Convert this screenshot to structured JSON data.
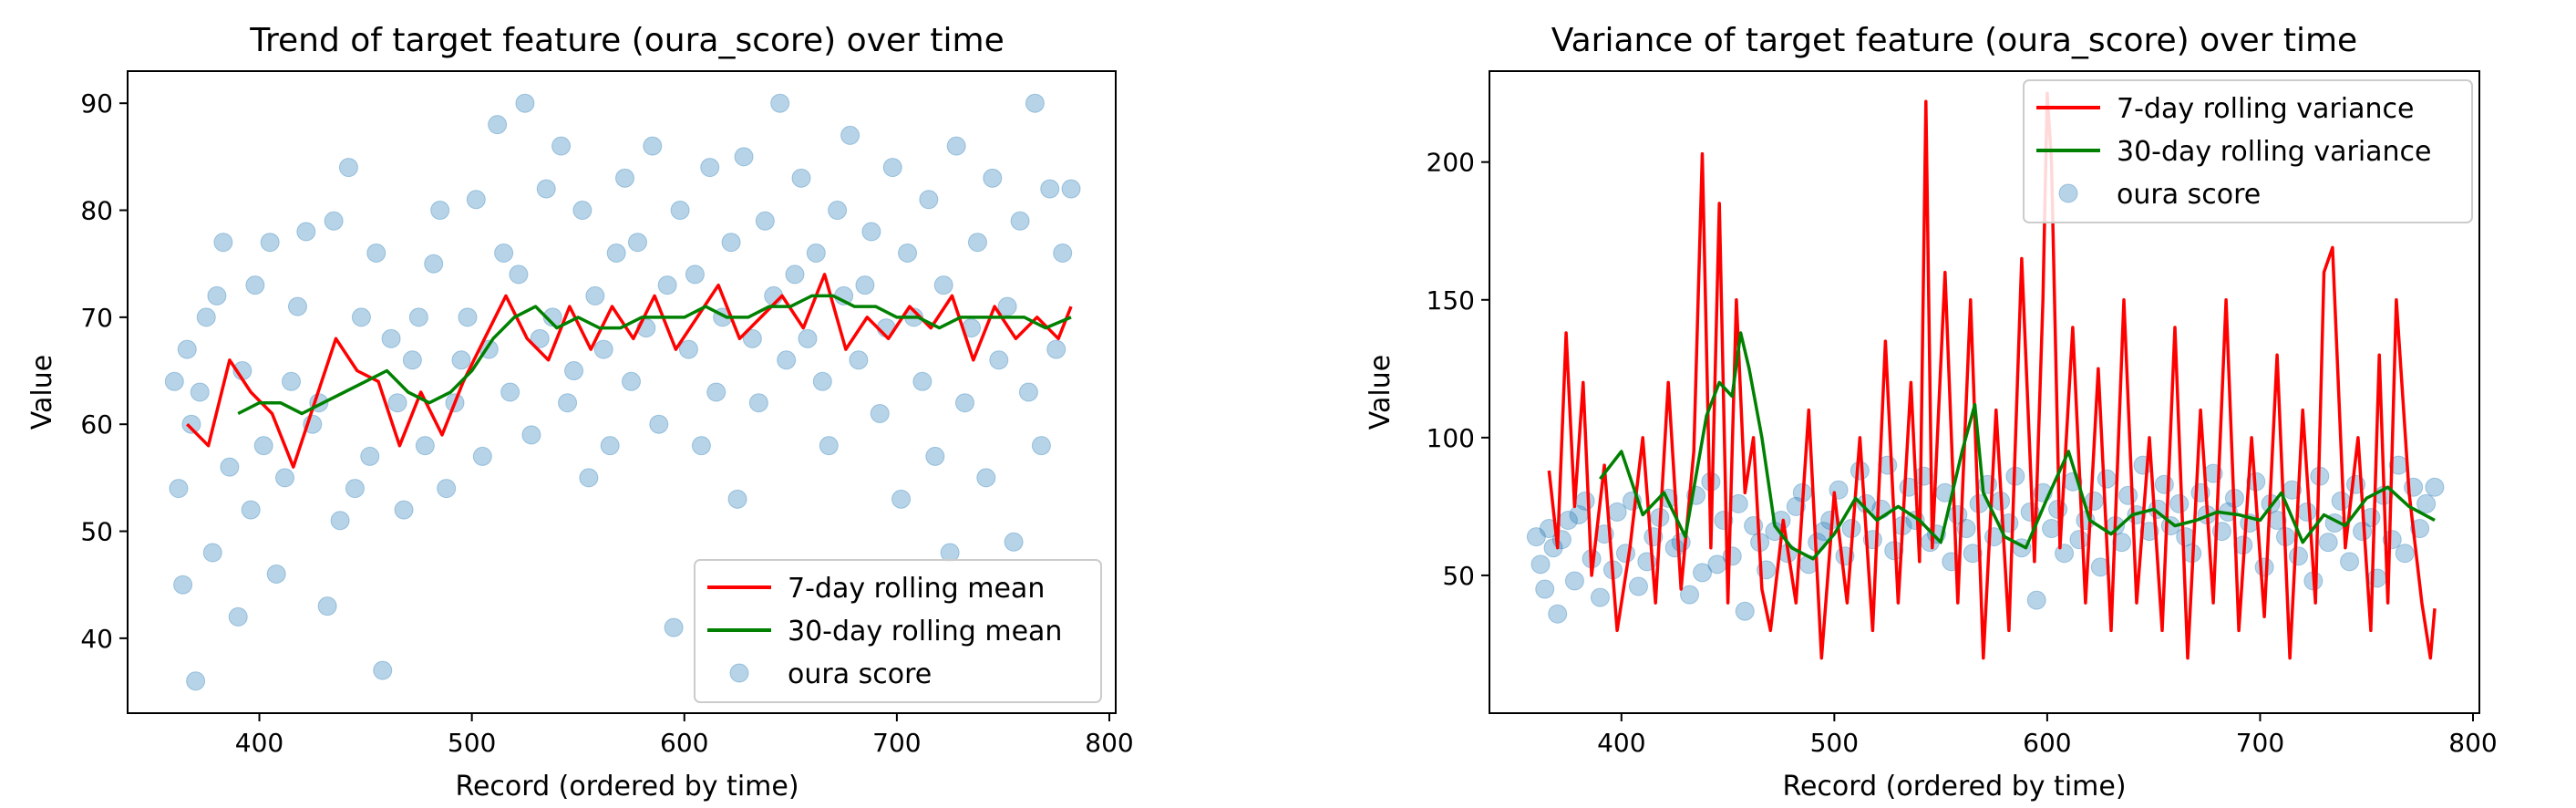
{
  "chart_data": [
    {
      "type": "line",
      "title": "Trend of target feature (oura_score) over time",
      "xlabel": "Record (ordered by time)",
      "ylabel": "Value",
      "xlim": [
        338,
        803
      ],
      "ylim": [
        33,
        93
      ],
      "xticks": [
        400,
        500,
        600,
        700,
        800
      ],
      "yticks": [
        40,
        50,
        60,
        70,
        80,
        90
      ],
      "grid": false,
      "legend_position": "lower-right",
      "series": [
        {
          "name": "7-day rolling mean",
          "kind": "line",
          "color": "#ff0000",
          "x": [
            366,
            376,
            386,
            396,
            406,
            416,
            426,
            436,
            446,
            456,
            466,
            476,
            486,
            496,
            506,
            516,
            526,
            536,
            546,
            556,
            566,
            576,
            586,
            596,
            606,
            616,
            626,
            636,
            646,
            656,
            666,
            676,
            686,
            696,
            706,
            716,
            726,
            736,
            746,
            756,
            766,
            776,
            782
          ],
          "y": [
            60,
            58,
            66,
            63,
            61,
            56,
            62,
            68,
            65,
            64,
            58,
            63,
            59,
            64,
            68,
            72,
            68,
            66,
            71,
            67,
            71,
            68,
            72,
            67,
            70,
            73,
            68,
            70,
            72,
            69,
            74,
            67,
            70,
            68,
            71,
            69,
            72,
            66,
            71,
            68,
            70,
            68,
            71
          ]
        },
        {
          "name": "30-day rolling mean",
          "kind": "line",
          "color": "#008000",
          "x": [
            390,
            400,
            410,
            420,
            430,
            440,
            450,
            460,
            470,
            480,
            490,
            500,
            510,
            520,
            530,
            540,
            550,
            560,
            570,
            580,
            590,
            600,
            610,
            620,
            630,
            640,
            650,
            660,
            670,
            680,
            690,
            700,
            710,
            720,
            730,
            740,
            750,
            760,
            770,
            782
          ],
          "y": [
            61,
            62,
            62,
            61,
            62,
            63,
            64,
            65,
            63,
            62,
            63,
            65,
            68,
            70,
            71,
            69,
            70,
            69,
            69,
            70,
            70,
            70,
            71,
            70,
            70,
            71,
            71,
            72,
            72,
            71,
            71,
            70,
            70,
            69,
            70,
            70,
            70,
            70,
            69,
            70
          ]
        },
        {
          "name": "oura score",
          "kind": "scatter",
          "color": "#1f77b4",
          "x": [
            360,
            362,
            364,
            366,
            368,
            370,
            372,
            375,
            378,
            380,
            383,
            386,
            390,
            392,
            396,
            398,
            402,
            405,
            408,
            412,
            415,
            418,
            422,
            425,
            428,
            432,
            435,
            438,
            442,
            445,
            448,
            452,
            455,
            458,
            462,
            465,
            468,
            472,
            475,
            478,
            482,
            485,
            488,
            492,
            495,
            498,
            502,
            505,
            508,
            512,
            515,
            518,
            522,
            525,
            528,
            532,
            535,
            538,
            542,
            545,
            548,
            552,
            555,
            558,
            562,
            565,
            568,
            572,
            575,
            578,
            582,
            585,
            588,
            592,
            595,
            598,
            602,
            605,
            608,
            612,
            615,
            618,
            622,
            625,
            628,
            632,
            635,
            638,
            642,
            645,
            648,
            652,
            655,
            658,
            662,
            665,
            668,
            672,
            675,
            678,
            682,
            685,
            688,
            692,
            695,
            698,
            702,
            705,
            708,
            712,
            715,
            718,
            722,
            725,
            728,
            732,
            735,
            738,
            742,
            745,
            748,
            752,
            755,
            758,
            762,
            765,
            768,
            772,
            775,
            778,
            782
          ],
          "y": [
            64,
            54,
            45,
            67,
            60,
            36,
            63,
            70,
            48,
            72,
            77,
            56,
            42,
            65,
            52,
            73,
            58,
            77,
            46,
            55,
            64,
            71,
            78,
            60,
            62,
            43,
            79,
            51,
            84,
            54,
            70,
            57,
            76,
            37,
            68,
            62,
            52,
            66,
            70,
            58,
            75,
            80,
            54,
            62,
            66,
            70,
            81,
            57,
            67,
            88,
            76,
            63,
            74,
            90,
            59,
            68,
            82,
            70,
            86,
            62,
            65,
            80,
            55,
            72,
            67,
            58,
            76,
            83,
            64,
            77,
            69,
            86,
            60,
            73,
            41,
            80,
            67,
            74,
            58,
            84,
            63,
            70,
            77,
            53,
            85,
            68,
            62,
            79,
            72,
            90,
            66,
            74,
            83,
            68,
            76,
            64,
            58,
            80,
            72,
            87,
            66,
            73,
            78,
            61,
            69,
            84,
            53,
            76,
            70,
            64,
            81,
            57,
            73,
            48,
            86,
            62,
            69,
            77,
            55,
            83,
            66,
            71,
            49,
            79,
            63,
            90,
            58,
            82,
            67,
            76,
            82
          ]
        }
      ]
    },
    {
      "type": "line",
      "title": "Variance of target feature (oura_score) over time",
      "xlabel": "Record (ordered by time)",
      "ylabel": "Value",
      "xlim": [
        338,
        803
      ],
      "ylim": [
        0,
        233
      ],
      "xticks": [
        400,
        500,
        600,
        700,
        800
      ],
      "yticks": [
        50,
        100,
        150,
        200
      ],
      "grid": false,
      "legend_position": "top-right",
      "series": [
        {
          "name": "7-day rolling variance",
          "kind": "line",
          "color": "#ff0000",
          "x": [
            366,
            370,
            374,
            378,
            382,
            386,
            392,
            398,
            404,
            410,
            416,
            422,
            428,
            434,
            438,
            442,
            446,
            450,
            454,
            458,
            462,
            466,
            470,
            476,
            482,
            488,
            494,
            500,
            506,
            512,
            518,
            524,
            530,
            536,
            540,
            543,
            546,
            552,
            558,
            564,
            570,
            576,
            582,
            588,
            594,
            598,
            600,
            602,
            606,
            612,
            618,
            624,
            630,
            636,
            642,
            648,
            654,
            660,
            666,
            672,
            678,
            684,
            690,
            696,
            702,
            708,
            714,
            720,
            726,
            730,
            734,
            740,
            746,
            752,
            756,
            760,
            764,
            770,
            776,
            780,
            782
          ],
          "y": [
            88,
            60,
            138,
            75,
            120,
            50,
            90,
            30,
            60,
            100,
            40,
            120,
            45,
            95,
            203,
            60,
            185,
            40,
            150,
            80,
            100,
            45,
            30,
            70,
            40,
            110,
            20,
            80,
            40,
            100,
            30,
            135,
            40,
            120,
            55,
            222,
            60,
            160,
            40,
            150,
            20,
            110,
            30,
            165,
            55,
            150,
            225,
            200,
            60,
            140,
            40,
            125,
            30,
            150,
            40,
            100,
            30,
            140,
            20,
            110,
            40,
            150,
            30,
            100,
            35,
            130,
            20,
            110,
            40,
            160,
            169,
            60,
            100,
            30,
            130,
            40,
            150,
            80,
            40,
            20,
            38
          ]
        },
        {
          "name": "30-day rolling variance",
          "kind": "line",
          "color": "#008000",
          "x": [
            390,
            400,
            410,
            420,
            430,
            440,
            446,
            452,
            456,
            460,
            466,
            472,
            480,
            490,
            500,
            510,
            520,
            530,
            540,
            550,
            560,
            566,
            570,
            580,
            590,
            600,
            610,
            620,
            630,
            640,
            650,
            660,
            670,
            680,
            690,
            700,
            710,
            720,
            730,
            740,
            750,
            760,
            770,
            782
          ],
          "y": [
            85,
            95,
            72,
            80,
            64,
            108,
            120,
            115,
            138,
            125,
            100,
            68,
            60,
            56,
            65,
            78,
            70,
            75,
            70,
            62,
            95,
            112,
            80,
            64,
            60,
            78,
            95,
            70,
            65,
            72,
            74,
            68,
            70,
            73,
            72,
            70,
            80,
            62,
            72,
            68,
            78,
            82,
            75,
            70
          ]
        },
        {
          "name": "oura score",
          "kind": "scatter",
          "color": "#1f77b4",
          "x": [
            360,
            362,
            364,
            366,
            368,
            370,
            372,
            375,
            378,
            380,
            383,
            386,
            390,
            392,
            396,
            398,
            402,
            405,
            408,
            412,
            415,
            418,
            422,
            425,
            428,
            432,
            435,
            438,
            442,
            445,
            448,
            452,
            455,
            458,
            462,
            465,
            468,
            472,
            475,
            478,
            482,
            485,
            488,
            492,
            495,
            498,
            502,
            505,
            508,
            512,
            515,
            518,
            522,
            525,
            528,
            532,
            535,
            538,
            542,
            545,
            548,
            552,
            555,
            558,
            562,
            565,
            568,
            572,
            575,
            578,
            582,
            585,
            588,
            592,
            595,
            598,
            602,
            605,
            608,
            612,
            615,
            618,
            622,
            625,
            628,
            632,
            635,
            638,
            642,
            645,
            648,
            652,
            655,
            658,
            662,
            665,
            668,
            672,
            675,
            678,
            682,
            685,
            688,
            692,
            695,
            698,
            702,
            705,
            708,
            712,
            715,
            718,
            722,
            725,
            728,
            732,
            735,
            738,
            742,
            745,
            748,
            752,
            755,
            758,
            762,
            765,
            768,
            772,
            775,
            778,
            782
          ],
          "y": [
            64,
            54,
            45,
            67,
            60,
            36,
            63,
            70,
            48,
            72,
            77,
            56,
            42,
            65,
            52,
            73,
            58,
            77,
            46,
            55,
            64,
            71,
            78,
            60,
            62,
            43,
            79,
            51,
            84,
            54,
            70,
            57,
            76,
            37,
            68,
            62,
            52,
            66,
            70,
            58,
            75,
            80,
            54,
            62,
            66,
            70,
            81,
            57,
            67,
            88,
            76,
            63,
            74,
            90,
            59,
            68,
            82,
            70,
            86,
            62,
            65,
            80,
            55,
            72,
            67,
            58,
            76,
            83,
            64,
            77,
            69,
            86,
            60,
            73,
            41,
            80,
            67,
            74,
            58,
            84,
            63,
            70,
            77,
            53,
            85,
            68,
            62,
            79,
            72,
            90,
            66,
            74,
            83,
            68,
            76,
            64,
            58,
            80,
            72,
            87,
            66,
            73,
            78,
            61,
            69,
            84,
            53,
            76,
            70,
            64,
            81,
            57,
            73,
            48,
            86,
            62,
            69,
            77,
            55,
            83,
            66,
            71,
            49,
            79,
            63,
            90,
            58,
            82,
            67,
            76,
            82
          ]
        }
      ]
    }
  ]
}
